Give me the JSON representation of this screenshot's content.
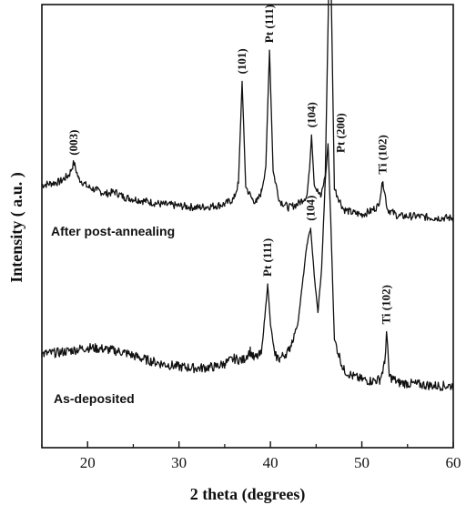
{
  "chart_data": {
    "type": "line",
    "xlabel": "2 theta (degrees)",
    "ylabel": "Intensity ( a.u. )",
    "xlim": [
      15,
      60
    ],
    "xticks": [
      "20",
      "30",
      "40",
      "50",
      "60"
    ],
    "yticks": false,
    "grid": false,
    "series": [
      {
        "name": "After post-annealing",
        "x": [
          15,
          17,
          18,
          18.5,
          19,
          20,
          21,
          22,
          23,
          24,
          26,
          28,
          30,
          32,
          34,
          35,
          36,
          36.5,
          36.9,
          37.3,
          38,
          38.5,
          39,
          39.5,
          39.9,
          40.3,
          41,
          42,
          43,
          44,
          44.3,
          44.5,
          44.8,
          45.5,
          46,
          46.3,
          46.5,
          46.7,
          47,
          48,
          49,
          50,
          51,
          51.8,
          52.3,
          52.8,
          54,
          56,
          58,
          60
        ],
        "y": [
          0.34,
          0.36,
          0.4,
          0.47,
          0.38,
          0.33,
          0.31,
          0.29,
          0.3,
          0.27,
          0.25,
          0.23,
          0.22,
          0.21,
          0.22,
          0.23,
          0.26,
          0.35,
          0.94,
          0.33,
          0.26,
          0.24,
          0.3,
          0.45,
          1.12,
          0.42,
          0.25,
          0.21,
          0.23,
          0.28,
          0.45,
          0.63,
          0.34,
          0.27,
          0.4,
          1.25,
          1.9,
          1.3,
          0.32,
          0.2,
          0.18,
          0.17,
          0.19,
          0.22,
          0.36,
          0.2,
          0.16,
          0.16,
          0.15,
          0.15
        ]
      },
      {
        "name": "As-deposited",
        "x": [
          15,
          17,
          18,
          20,
          22,
          24,
          26,
          28,
          30,
          32,
          34,
          35,
          36,
          37,
          37.8,
          38.2,
          39,
          39.4,
          39.7,
          40,
          40.5,
          41,
          42,
          43,
          43.5,
          44,
          44.4,
          44.8,
          45.2,
          45.6,
          46,
          46.3,
          46.6,
          47,
          48,
          49,
          50,
          51,
          52,
          52.5,
          52.7,
          53,
          54,
          56,
          58,
          60
        ],
        "y": [
          0.36,
          0.37,
          0.38,
          0.4,
          0.39,
          0.37,
          0.33,
          0.3,
          0.28,
          0.27,
          0.28,
          0.3,
          0.33,
          0.32,
          0.38,
          0.33,
          0.36,
          0.6,
          0.8,
          0.55,
          0.35,
          0.33,
          0.38,
          0.55,
          0.8,
          1.05,
          1.15,
          0.85,
          0.62,
          0.9,
          1.45,
          1.68,
          1.2,
          0.45,
          0.26,
          0.22,
          0.2,
          0.19,
          0.2,
          0.3,
          0.5,
          0.22,
          0.18,
          0.17,
          0.16,
          0.16
        ]
      }
    ],
    "annotations": [
      {
        "series": 0,
        "x": 18.5,
        "text": "(003)"
      },
      {
        "series": 0,
        "x": 36.9,
        "text": "(101)"
      },
      {
        "series": 0,
        "x": 39.9,
        "text": "Pt (111)"
      },
      {
        "series": 0,
        "x": 44.5,
        "text": "(104)"
      },
      {
        "series": 0,
        "x": 46.5,
        "text": "Pt (200)"
      },
      {
        "series": 0,
        "x": 52.3,
        "text": "Ti (102)"
      },
      {
        "series": 1,
        "x": 39.7,
        "text": "Pt (111)"
      },
      {
        "series": 1,
        "x": 44.4,
        "text": "(104)"
      },
      {
        "series": 1,
        "x": 46.3,
        "text": "Pt (200)"
      },
      {
        "series": 1,
        "x": 52.7,
        "text": "Ti (102)"
      }
    ]
  }
}
